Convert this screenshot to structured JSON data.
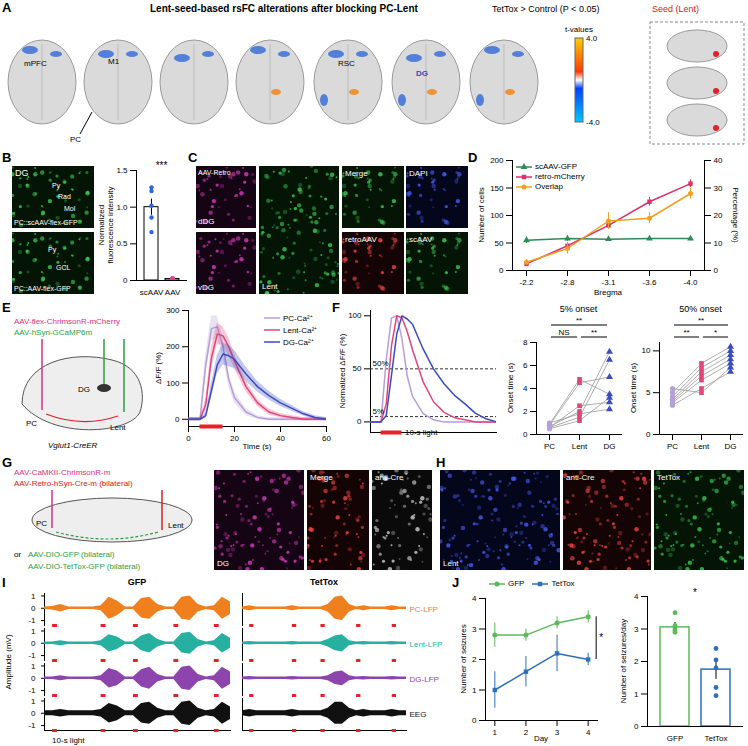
{
  "chart_data": [
    {
      "type": "bar",
      "categories": [
        "scAAV",
        "AAV"
      ],
      "values": [
        1.0,
        0.02
      ],
      "errors": [
        0.11,
        0.01
      ],
      "points": [
        [
          1.27,
          1.22,
          1.02,
          0.86,
          0.66
        ],
        [
          0.03,
          0.02,
          0.01,
          0.02,
          0.03
        ]
      ],
      "colors": [
        "#2f63d8",
        "#e0409a"
      ],
      "ylabel": "Normalized fluorescence intensity",
      "ylim": [
        0,
        1.5
      ],
      "yticks": [
        0,
        0.5,
        {
          "value": 1,
          "label": "1.0"
        },
        1.5
      ],
      "annotations": [
        "***"
      ]
    },
    {
      "type": "line",
      "xlabel": "Bregma",
      "categories": [
        "-2.2",
        "-2.8",
        "-3.1",
        "-3.6",
        "-4.0"
      ],
      "ylabel": "Number of cells",
      "y2label": "Percentage (%)",
      "ylim": [
        0,
        200
      ],
      "yticks": [
        0,
        50,
        100,
        150,
        200
      ],
      "y2lim": [
        0,
        40
      ],
      "y2ticks": [
        0,
        10,
        20,
        30,
        40
      ],
      "legend": "top-left",
      "series": [
        {
          "name": "scAAV-GFP",
          "color": "#2e8b57",
          "marker": "triangle",
          "values": [
            55,
            58,
            57,
            58,
            58
          ],
          "errors": [
            6,
            5,
            4,
            3,
            4
          ]
        },
        {
          "name": "retro-mCherry",
          "color": "#d6336c",
          "marker": "square",
          "values": [
            12,
            45,
            82,
            125,
            158
          ],
          "errors": [
            3,
            5,
            6,
            8,
            7
          ]
        },
        {
          "name": "Overlap",
          "color": "#f0a020",
          "marker": "circle",
          "axis": "y2",
          "values": [
            3,
            8,
            18,
            19,
            28
          ],
          "errors": [
            1,
            2,
            3,
            2,
            2
          ]
        }
      ]
    },
    {
      "type": "line",
      "xlabel": "Time (s)",
      "ylabel": "ΔF/F (%)",
      "x": [
        0,
        2.5,
        5,
        7.5,
        10,
        12.5,
        15,
        17.5,
        20,
        25,
        30,
        35,
        40,
        45,
        50,
        55,
        60
      ],
      "xlim": [
        0,
        60
      ],
      "xticks": [
        0,
        20,
        40,
        60
      ],
      "ylim": [
        -20,
        300
      ],
      "yticks": [
        0,
        100,
        200,
        300
      ],
      "stimulus": [
        5,
        15
      ],
      "legend": "top-right",
      "series": [
        {
          "name": "PC-Ca²⁺",
          "color": "#b59fd8",
          "values": [
            0,
            0,
            0,
            150,
            250,
            255,
            200,
            110,
            60,
            20,
            5,
            0,
            0,
            0,
            0,
            0,
            0
          ],
          "errors": [
            5,
            5,
            5,
            30,
            35,
            30,
            25,
            20,
            15,
            10,
            5,
            5,
            5,
            5,
            5,
            5,
            5
          ]
        },
        {
          "name": "Lent-Ca²⁺",
          "color": "#e0457b",
          "values": [
            0,
            0,
            0,
            40,
            170,
            235,
            230,
            200,
            160,
            90,
            45,
            20,
            10,
            5,
            0,
            0,
            0
          ],
          "errors": [
            5,
            5,
            5,
            15,
            30,
            30,
            25,
            25,
            20,
            15,
            10,
            8,
            6,
            5,
            5,
            5,
            5
          ]
        },
        {
          "name": "DG-Ca²⁺",
          "color": "#3b4cc0",
          "values": [
            0,
            0,
            0,
            10,
            80,
            150,
            180,
            175,
            165,
            125,
            90,
            65,
            45,
            30,
            15,
            5,
            0
          ],
          "errors": [
            5,
            5,
            5,
            8,
            20,
            25,
            30,
            30,
            25,
            20,
            15,
            12,
            10,
            8,
            6,
            5,
            5
          ]
        }
      ]
    },
    {
      "type": "line",
      "ylabel": "Normalized ΔF/F (%)",
      "annotations": [
        "10-s light"
      ],
      "x": [
        0,
        2.5,
        5,
        7.5,
        10,
        12.5,
        15,
        17.5,
        20,
        25,
        30,
        35,
        40,
        45,
        50,
        55,
        60
      ],
      "xlim": [
        0,
        60
      ],
      "ylim": [
        -10,
        105
      ],
      "yticks": [
        0,
        50,
        100
      ],
      "tick_labels": "y",
      "stimulus": [
        5,
        15
      ],
      "thresholds": [
        {
          "value": 5,
          "label": "5%"
        },
        {
          "value": 50,
          "label": "50%"
        }
      ],
      "series": [
        {
          "color": "#b59fd8",
          "values": [
            0,
            0,
            0,
            59,
            98,
            100,
            78,
            43,
            24,
            8,
            2,
            0,
            0,
            0,
            0,
            0,
            0
          ]
        },
        {
          "color": "#e0457b",
          "values": [
            0,
            0,
            0,
            17,
            72,
            100,
            98,
            85,
            68,
            38,
            19,
            9,
            4,
            2,
            0,
            0,
            0
          ]
        },
        {
          "color": "#3b4cc0",
          "values": [
            0,
            0,
            0,
            6,
            44,
            83,
            100,
            97,
            92,
            69,
            50,
            36,
            25,
            17,
            8,
            3,
            0
          ]
        }
      ]
    },
    {
      "type": "scatter",
      "title": "5% onset",
      "ylabel": "Onset time (s)",
      "ylim": [
        0,
        8
      ],
      "yticks": [
        0,
        2,
        4,
        6,
        8
      ],
      "series": [
        {
          "name": "PC",
          "color": "#b59fd8",
          "marker": "circle",
          "values": [
            0.5,
            0.6,
            0.7,
            0.8,
            0.9,
            1.0,
            0.6
          ]
        },
        {
          "name": "Lent",
          "color": "#e0457b",
          "marker": "square",
          "values": [
            1.2,
            1.5,
            2.0,
            4.5,
            4.8,
            1.8,
            2.5
          ]
        },
        {
          "name": "DG",
          "color": "#3b4cc0",
          "marker": "triangle",
          "values": [
            3.2,
            6.5,
            7.2,
            5.0,
            3.5,
            2.2,
            2.8
          ]
        }
      ],
      "comparisons": [
        {
          "pair": [
            "PC",
            "Lent"
          ],
          "label": "NS"
        },
        {
          "pair": [
            "Lent",
            "DG"
          ],
          "label": "**"
        },
        {
          "pair": [
            "PC",
            "DG"
          ],
          "label": "**"
        }
      ]
    },
    {
      "type": "scatter",
      "title": "50% onset",
      "ylabel": "Onset time (s)",
      "ylim": [
        0,
        11
      ],
      "yticks": [
        0,
        5,
        10
      ],
      "series": [
        {
          "name": "PC",
          "color": "#b59fd8",
          "marker": "circle",
          "values": [
            3.5,
            3.8,
            4.0,
            4.2,
            4.5,
            5.0,
            5.5
          ]
        },
        {
          "name": "Lent",
          "color": "#e0457b",
          "marker": "square",
          "values": [
            5.5,
            6.5,
            7.0,
            7.5,
            8.0,
            8.5,
            5.0
          ]
        },
        {
          "name": "DG",
          "color": "#3b4cc0",
          "marker": "triangle",
          "values": [
            7.5,
            8.5,
            9.0,
            9.5,
            10.0,
            10.5,
            8.0
          ]
        }
      ],
      "comparisons": [
        {
          "pair": [
            "PC",
            "Lent"
          ],
          "label": "**"
        },
        {
          "pair": [
            "Lent",
            "DG"
          ],
          "label": "*"
        },
        {
          "pair": [
            "PC",
            "DG"
          ],
          "label": "**"
        }
      ]
    },
    {
      "type": "trace",
      "ylabel": "Amplitude (mV)",
      "annotations": [
        "10-s light"
      ],
      "x": [
        0,
        1,
        2,
        3,
        4,
        5,
        6,
        7,
        8,
        9,
        10,
        11,
        12,
        13,
        14,
        15,
        16,
        17,
        18,
        19,
        20,
        21,
        22,
        23
      ],
      "xlim": [
        0,
        23
      ],
      "ylim": [
        -1.4,
        1.2
      ],
      "yticks": [
        -1,
        0,
        1
      ],
      "tick_labels": "y",
      "stimuli": [
        [
          1,
          1.6
        ],
        [
          7,
          7.6
        ],
        [
          11,
          11.6
        ],
        [
          16,
          16.6
        ],
        [
          21,
          21.6
        ]
      ],
      "series": [
        {
          "name": "PC-LFP",
          "color": "#f07f1e"
        },
        {
          "name": "Lent-LFP",
          "color": "#26b0a0"
        },
        {
          "name": "DG-LFP",
          "color": "#8e44ad"
        },
        {
          "name": "EEG",
          "color": "#111111"
        }
      ],
      "panels": [
        {
          "title": "GFP",
          "values": [
            [
              0.1,
              0.15,
              0.3,
              0.1,
              0.1,
              0.1,
              0.1,
              0.2,
              0.9,
              0.6,
              0.1,
              0.1,
              0.8,
              0.9,
              0.3,
              0.1,
              0.1,
              0.9,
              1.0,
              0.3,
              0.1,
              0.2,
              0.9,
              0.5
            ],
            [
              0.1,
              0.1,
              0.2,
              0.1,
              0.1,
              0.1,
              0.1,
              0.2,
              0.7,
              0.5,
              0.1,
              0.1,
              0.6,
              0.8,
              0.3,
              0.1,
              0.1,
              0.8,
              0.9,
              0.3,
              0.1,
              0.2,
              0.8,
              0.4
            ],
            [
              0.1,
              0.1,
              0.2,
              0.1,
              0.1,
              0.1,
              0.1,
              0.2,
              0.8,
              0.6,
              0.1,
              0.1,
              0.7,
              0.9,
              0.3,
              0.1,
              0.1,
              0.9,
              1.0,
              0.3,
              0.1,
              0.2,
              0.9,
              0.5
            ],
            [
              0.2,
              0.2,
              0.3,
              0.2,
              0.2,
              0.2,
              0.2,
              0.3,
              0.8,
              0.6,
              0.2,
              0.2,
              0.8,
              0.9,
              0.4,
              0.2,
              0.2,
              0.9,
              1.0,
              0.4,
              0.2,
              0.3,
              0.9,
              0.5
            ]
          ]
        },
        {
          "title": "TetTox",
          "tick_labels": false,
          "values": [
            [
              0.1,
              0.2,
              0.1,
              0.1,
              0.1,
              0.1,
              0.1,
              0.2,
              0.1,
              0.1,
              0.1,
              0.1,
              0.3,
              0.9,
              1.0,
              0.3,
              0.1,
              0.2,
              0.1,
              0.1,
              0.1,
              0.2,
              0.1,
              0.1
            ],
            [
              0.1,
              0.15,
              0.1,
              0.1,
              0.1,
              0.1,
              0.1,
              0.15,
              0.1,
              0.1,
              0.1,
              0.1,
              0.3,
              0.6,
              0.7,
              0.2,
              0.1,
              0.15,
              0.1,
              0.1,
              0.1,
              0.15,
              0.1,
              0.1
            ],
            [
              0.1,
              0.15,
              0.1,
              0.1,
              0.1,
              0.1,
              0.1,
              0.15,
              0.1,
              0.1,
              0.1,
              0.1,
              0.2,
              0.5,
              0.6,
              0.2,
              0.1,
              0.15,
              0.1,
              0.1,
              0.1,
              0.15,
              0.1,
              0.1
            ],
            [
              0.2,
              0.3,
              0.2,
              0.2,
              0.2,
              0.2,
              0.2,
              0.3,
              0.2,
              0.2,
              0.2,
              0.2,
              0.4,
              0.9,
              0.9,
              0.4,
              0.2,
              0.3,
              0.2,
              0.2,
              0.2,
              0.3,
              0.2,
              0.2
            ]
          ]
        }
      ]
    },
    {
      "type": "line",
      "xlabel": "Day",
      "ylabel": "Number of seizures",
      "x": [
        1,
        2,
        3,
        4
      ],
      "xlim": [
        0.7,
        4.3
      ],
      "xticks": [
        1,
        2,
        3,
        4
      ],
      "ylim": [
        0,
        4
      ],
      "yticks": [
        0,
        1,
        2,
        3,
        4
      ],
      "legend": "top",
      "annotations": [
        "*"
      ],
      "series": [
        {
          "name": "GFP",
          "color": "#5cb85c",
          "marker": "circle",
          "values": [
            2.8,
            2.8,
            3.2,
            3.4
          ],
          "errors": [
            0.4,
            0.2,
            0.2,
            0.2
          ]
        },
        {
          "name": "TetTox",
          "color": "#2f6fba",
          "marker": "square",
          "values": [
            1.0,
            1.6,
            2.2,
            2.0
          ],
          "errors": [
            0.6,
            0.5,
            0.6,
            0.2
          ]
        }
      ]
    },
    {
      "type": "bar",
      "ylabel": "Number of seizures/day",
      "categories": [
        "GFP",
        "TetTox"
      ],
      "values": [
        3.05,
        1.75
      ],
      "errors": [
        0.15,
        0.3
      ],
      "points": [
        [
          3.5,
          3.0,
          2.95,
          3.1,
          2.9
        ],
        [
          2.4,
          2.05,
          1.8,
          1.2,
          0.95
        ]
      ],
      "colors": [
        "#5cb85c",
        "#2f6fba"
      ],
      "ylim": [
        0,
        4
      ],
      "yticks": [
        0,
        1,
        2,
        3,
        4
      ],
      "annotations": [
        "*"
      ]
    }
  ],
  "figure": {
    "letters": [
      "A",
      "B",
      "C",
      "D",
      "E",
      "F",
      "G",
      "H",
      "I",
      "J"
    ],
    "A": {
      "title": "Lent-seed-based rsFC alterations after blocking PC-Lent",
      "subtitle": "TetTox > Control (P < 0.05)",
      "seed": "Seed (Lent)",
      "regions": [
        "mPFC",
        "M1",
        "RSC",
        "DG",
        "PC"
      ],
      "colorbar": {
        "label": "t-values",
        "range": [
          -4,
          4
        ],
        "ticks": [
          {
            "value": 4,
            "label": "4.0"
          },
          {
            "value": -4,
            "label": "-4.0"
          }
        ]
      }
    },
    "B": {
      "region": "DG",
      "layers_top": [
        "Py",
        "Rad",
        "Mol"
      ],
      "layers_bottom": [
        "Py",
        "GCL"
      ],
      "captions": [
        "PC::scAAV-flex-GFP",
        "PC::AAV-flex-GFP"
      ]
    },
    "C": {
      "tracer": "AAV-Retro",
      "sections": [
        "dDG",
        "vDG"
      ],
      "region": "Lent",
      "tiles": [
        "Merge",
        "DAPI",
        "retroAAV",
        "scAAV"
      ]
    },
    "E": {
      "vectors": [
        "AAV-flex-ChrimsonR-mCherry",
        "AAV-hSyn-GCaMP6m"
      ],
      "regions": [
        "PC",
        "Lent",
        "DG"
      ],
      "mouse": "Vglut1-CreER"
    },
    "G": {
      "vectors": [
        "AAV-CaMKII-ChrimsonR-m",
        "AAV-Retro-hSyn-Cre-m (bilateral)",
        "AAV-DIO-GFP (bilateral)",
        "or",
        "AAV-DIO-TetTox-GFP (bilateral)"
      ],
      "regions": [
        "PC",
        "Lent"
      ],
      "images": [
        "DG",
        "Merge",
        "anti-Cre"
      ]
    },
    "H": {
      "images": [
        "Lent",
        "anti-Cre",
        "TetTox"
      ]
    }
  }
}
